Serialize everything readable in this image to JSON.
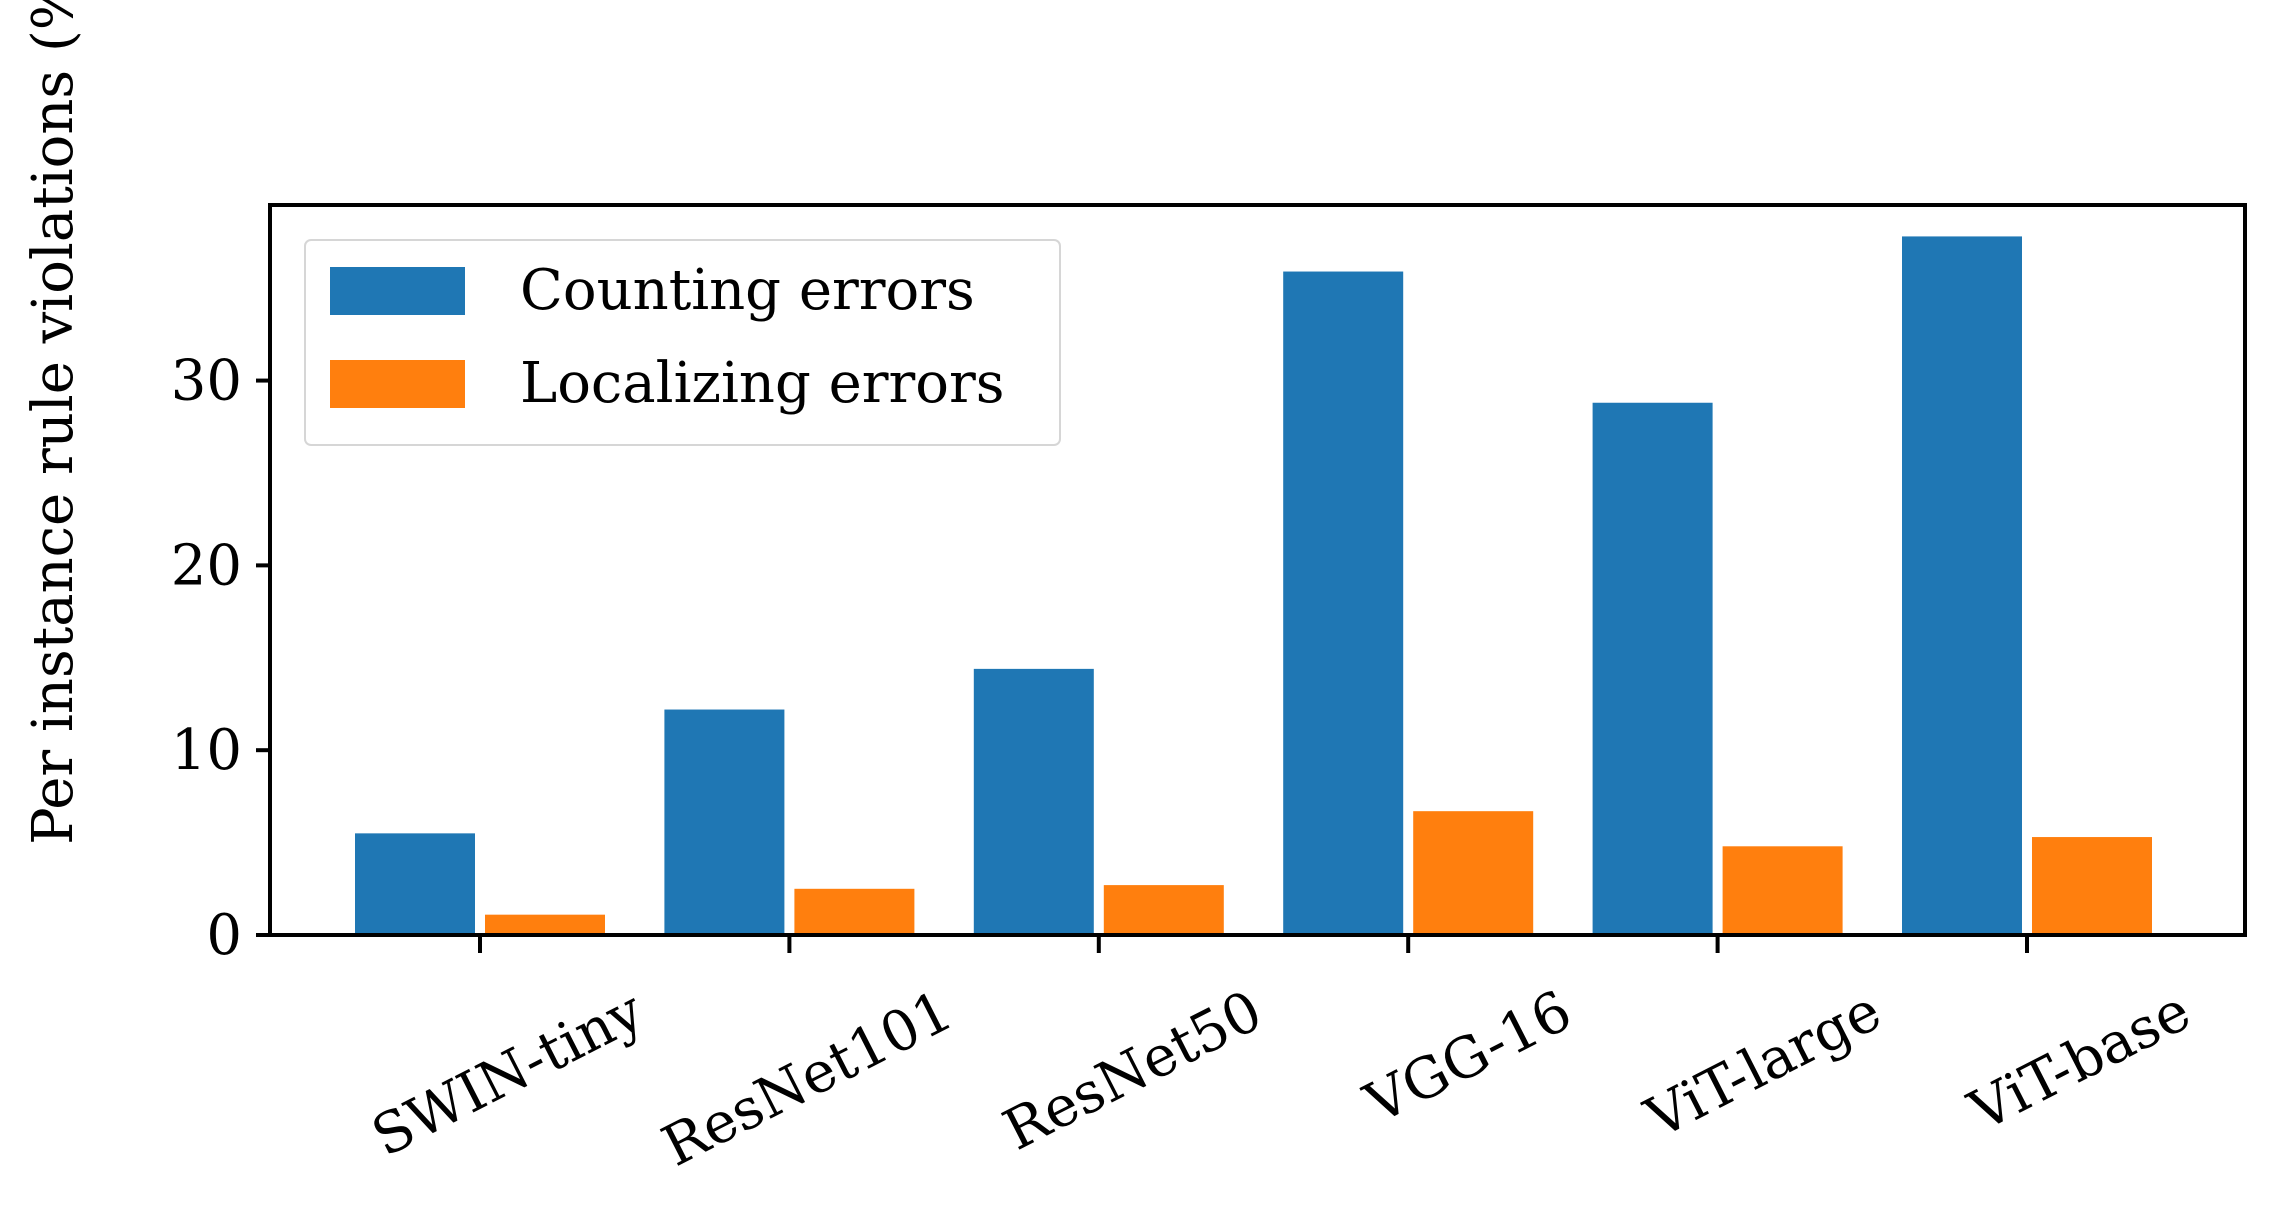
{
  "chart_data": {
    "type": "bar",
    "title": "",
    "xlabel": "",
    "ylabel": "Per instance rule violations (%)",
    "categories": [
      "SWIN-tiny",
      "ResNet101",
      "ResNet50",
      "VGG-16",
      "ViT-large",
      "ViT-base"
    ],
    "series": [
      {
        "name": "Counting errors",
        "color": "#1f77b4",
        "values": [
          5.5,
          12.2,
          14.4,
          35.9,
          28.8,
          37.8
        ]
      },
      {
        "name": "Localizing errors",
        "color": "#ff7f0e",
        "values": [
          1.1,
          2.5,
          2.7,
          6.7,
          4.8,
          5.3
        ]
      }
    ],
    "ylim": [
      0,
      39.5
    ],
    "yticks": [
      0,
      10,
      20,
      30
    ],
    "ytick_labels": [
      "0",
      "10",
      "20",
      "30"
    ],
    "grid": false,
    "legend_position": "top-left",
    "xtick_label_rotation": "rotated"
  }
}
